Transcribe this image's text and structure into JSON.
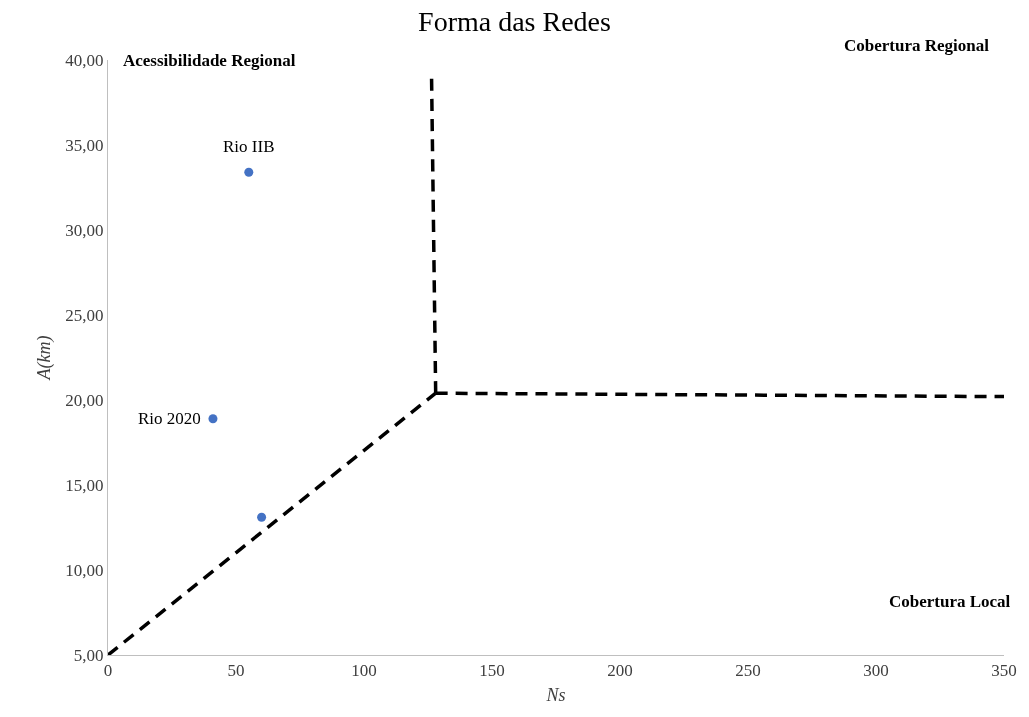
{
  "chart_data": {
    "type": "scatter",
    "title": "Forma das Redes",
    "xlabel": "Ns",
    "ylabel": "A(km)",
    "xlim": [
      0,
      350
    ],
    "xticks": [
      0,
      50,
      100,
      150,
      200,
      250,
      300,
      350
    ],
    "ylim": [
      5,
      40
    ],
    "yticks": [
      {
        "value": 5,
        "label": "5,00"
      },
      {
        "value": 10,
        "label": "10,00"
      },
      {
        "value": 15,
        "label": "15,00"
      },
      {
        "value": 20,
        "label": "20,00"
      },
      {
        "value": 25,
        "label": "25,00"
      },
      {
        "value": 30,
        "label": "30,00"
      },
      {
        "value": 35,
        "label": "35,00"
      },
      {
        "value": 40,
        "label": "40,00"
      }
    ],
    "series": [
      {
        "color": "#4472c4",
        "marker": "circle",
        "x": [
          55,
          41,
          60
        ],
        "values": [
          33.4,
          18.9,
          13.1
        ]
      },
      {
        "type": "line",
        "color": "#000000",
        "marker": "none",
        "line_style": "dashed",
        "x": [
          0,
          128
        ],
        "values": [
          5,
          20.4
        ]
      },
      {
        "type": "line",
        "color": "#000000",
        "marker": "none",
        "line_style": "dashed",
        "x": [
          128,
          126.4
        ],
        "values": [
          20.4,
          38.9
        ]
      },
      {
        "type": "line",
        "color": "#000000",
        "marker": "none",
        "line_style": "dashed",
        "x": [
          128,
          350
        ],
        "values": [
          20.4,
          20.2
        ]
      }
    ],
    "annotations": [
      {
        "text": "Rio IIB",
        "x": 55,
        "y": 33.4
      },
      {
        "text": "Rio 2020",
        "x": 41,
        "y": 18.9
      },
      "Acessibilidade Regional",
      "Cobertura Regional",
      "Cobertura Local"
    ]
  }
}
